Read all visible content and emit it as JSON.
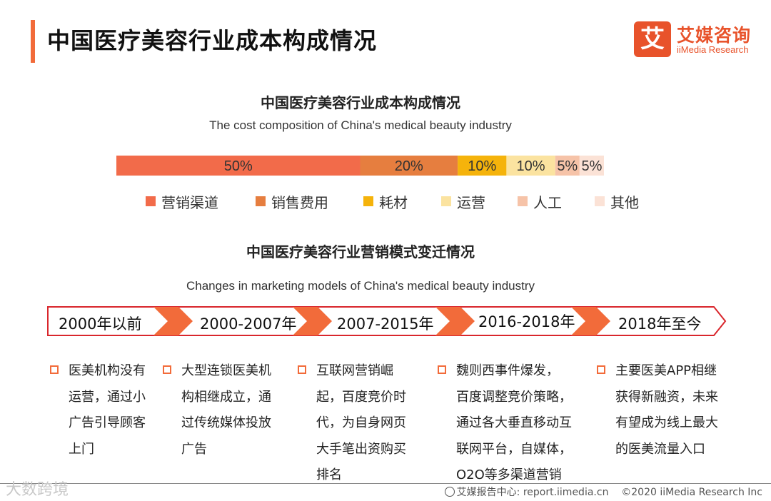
{
  "header": {
    "title": "中国医疗美容行业成本构成情况",
    "logo_mark": "艾",
    "logo_cn": "艾媒咨询",
    "logo_en": "iiMedia Research"
  },
  "chart_data": [
    {
      "type": "bar",
      "orientation": "horizontal-stacked",
      "title": "中国医疗美容行业成本构成情况",
      "subtitle": "The cost composition of China's medical beauty industry",
      "series": [
        {
          "name": "营销渠道",
          "value": 50,
          "label": "50%",
          "color": "#f26b4a"
        },
        {
          "name": "销售费用",
          "value": 20,
          "label": "20%",
          "color": "#e67e3f"
        },
        {
          "name": "耗材",
          "value": 10,
          "label": "10%",
          "color": "#f5b30b"
        },
        {
          "name": "运营",
          "value": 10,
          "label": "10%",
          "color": "#fbe3a0"
        },
        {
          "name": "人工",
          "value": 5,
          "label": "5%",
          "color": "#f6c3a8"
        },
        {
          "name": "其他",
          "value": 5,
          "label": "5%",
          "color": "#fbe2d6"
        }
      ],
      "legend_position": "bottom"
    }
  ],
  "timeline": {
    "title": "中国医疗美容行业营销模式变迁情况",
    "subtitle": "Changes in marketing models of China's medical beauty industry",
    "arrow_color": "#f26b3a",
    "phases": [
      {
        "label": "2000年以前",
        "lines": [
          "医美机构没有",
          "运营，通过小",
          "广告引导顾客",
          "上门"
        ]
      },
      {
        "label": "2000-2007年",
        "lines": [
          "大型连锁医美机",
          "构相继成立，通",
          "过传统媒体投放",
          "广告"
        ]
      },
      {
        "label": "2007-2015年",
        "lines": [
          "互联网营销崛",
          "起，百度竞价时",
          "代，为自身网页",
          "大手笔出资购买",
          "排名"
        ]
      },
      {
        "label": "2016-2018年",
        "lines": [
          "魏则西事件爆发，",
          "百度调整竞价策略，",
          "通过各大垂直移动互",
          "联网平台，自媒体，",
          "O2O等多渠道营销"
        ]
      },
      {
        "label": "2018年至今",
        "lines": [
          "主要医美APP相继",
          "获得新融资，未来",
          "有望成为线上最大",
          "的医美流量入口"
        ]
      }
    ]
  },
  "footer": {
    "source": "艾媒报告中心: report.iimedia.cn",
    "copyright": "©2020  iiMedia Research  Inc",
    "watermark": "大数跨境"
  }
}
